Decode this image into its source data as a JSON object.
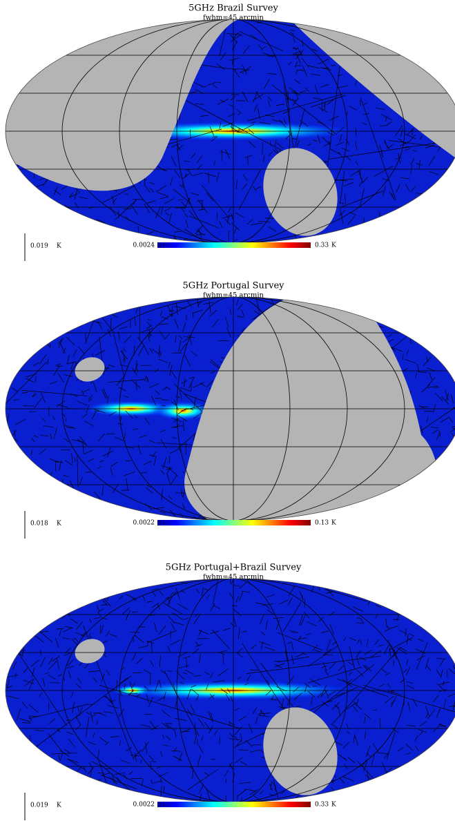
{
  "panels": [
    {
      "title": "5GHz Brazil Survey",
      "subtitle": "fwhm=45 arcmin",
      "scale_label": "0.019",
      "scale_unit": "K",
      "colorbar_min": "0.0024",
      "colorbar_max": "0.33",
      "colorbar_unit": "K"
    },
    {
      "title": "5GHz Portugal Survey",
      "subtitle": "fwhm=45 arcmin",
      "scale_label": "0.018",
      "scale_unit": "K",
      "colorbar_min": "0.0022",
      "colorbar_max": "0.13",
      "colorbar_unit": "K"
    },
    {
      "title": "5GHz Portugal+Brazil Survey",
      "subtitle": "fwhm=45 arcmin",
      "scale_label": "0.019",
      "scale_unit": "K",
      "colorbar_min": "0.0022",
      "colorbar_max": "0.33",
      "colorbar_unit": "K"
    }
  ]
}
